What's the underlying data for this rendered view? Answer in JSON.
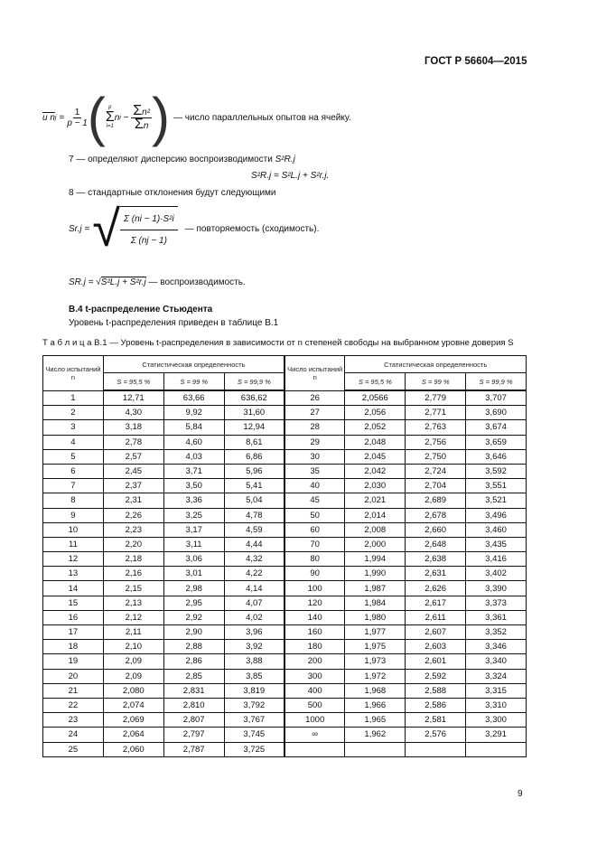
{
  "header": {
    "standard": "ГОСТ Р 56604—2015"
  },
  "formula_nj": {
    "lhs": "и  n",
    "sub": "j",
    "eq": "=",
    "one": "1",
    "den": "p − 1",
    "sum_top": "p",
    "sum_bot": "i=1",
    "ni": "n",
    "ni_sub": "i",
    "ni2": "n²",
    "desc": "— число параллельных опытов на ячейку."
  },
  "step7": {
    "text": "7 — определяют дисперсию воспроизводимости",
    "sym": "S²R.j",
    "formula": "S²R.j = S²L.j + S²r.j."
  },
  "step8": {
    "text": "8 — стандартные отклонения будут следующими",
    "sr_lhs": "Sr.j =",
    "sr_num": "Σ (ni − 1)·S²i",
    "sr_den": "Σ (nj − 1)",
    "sr_desc": "— повторяемость (сходимость).",
    "sR_lhs": "SR.j =",
    "sR_rad": "S²L.j + S²r.j",
    "sR_desc": "— воспроизводимость."
  },
  "section": {
    "title": "B.4  t-распределение Стьюдента",
    "intro": "Уровень t-распределения приведен в таблице B.1"
  },
  "table": {
    "caption": "Т а б л и ц а  B.1 — Уровень t-распределения в зависимости от n степеней свободы на выбранном уровне доверия S",
    "col_n": "Число испытаний n",
    "col_group": "Статистическая определенность",
    "sub": [
      "S = 95,5 %",
      "S = 99 %",
      "S = 99,9 %"
    ],
    "left": [
      [
        "1",
        "12,71",
        "63,66",
        "636,62"
      ],
      [
        "2",
        "4,30",
        "9,92",
        "31,60"
      ],
      [
        "3",
        "3,18",
        "5,84",
        "12,94"
      ],
      [
        "4",
        "2,78",
        "4,60",
        "8,61"
      ],
      [
        "5",
        "2,57",
        "4,03",
        "6,86"
      ],
      [
        "6",
        "2,45",
        "3,71",
        "5,96"
      ],
      [
        "7",
        "2,37",
        "3,50",
        "5,41"
      ],
      [
        "8",
        "2,31",
        "3,36",
        "5,04"
      ],
      [
        "9",
        "2,26",
        "3,25",
        "4,78"
      ],
      [
        "10",
        "2,23",
        "3,17",
        "4,59"
      ],
      [
        "11",
        "2,20",
        "3,11",
        "4,44"
      ],
      [
        "12",
        "2,18",
        "3,06",
        "4,32"
      ],
      [
        "13",
        "2,16",
        "3,01",
        "4,22"
      ],
      [
        "14",
        "2,15",
        "2,98",
        "4,14"
      ],
      [
        "15",
        "2,13",
        "2,95",
        "4,07"
      ],
      [
        "16",
        "2,12",
        "2,92",
        "4,02"
      ],
      [
        "17",
        "2,11",
        "2,90",
        "3,96"
      ],
      [
        "18",
        "2,10",
        "2,88",
        "3,92"
      ],
      [
        "19",
        "2,09",
        "2,86",
        "3,88"
      ],
      [
        "20",
        "2,09",
        "2,85",
        "3,85"
      ],
      [
        "21",
        "2,080",
        "2,831",
        "3,819"
      ],
      [
        "22",
        "2,074",
        "2,810",
        "3,792"
      ],
      [
        "23",
        "2,069",
        "2,807",
        "3,767"
      ],
      [
        "24",
        "2,064",
        "2,797",
        "3,745"
      ],
      [
        "25",
        "2,060",
        "2,787",
        "3,725"
      ]
    ],
    "right": [
      [
        "26",
        "2,0566",
        "2,779",
        "3,707"
      ],
      [
        "27",
        "2,056",
        "2,771",
        "3,690"
      ],
      [
        "28",
        "2,052",
        "2,763",
        "3,674"
      ],
      [
        "29",
        "2,048",
        "2,756",
        "3,659"
      ],
      [
        "30",
        "2,045",
        "2,750",
        "3,646"
      ],
      [
        "35",
        "2,042",
        "2,724",
        "3,592"
      ],
      [
        "40",
        "2,030",
        "2,704",
        "3,551"
      ],
      [
        "45",
        "2,021",
        "2,689",
        "3,521"
      ],
      [
        "50",
        "2,014",
        "2,678",
        "3,496"
      ],
      [
        "60",
        "2,008",
        "2,660",
        "3,460"
      ],
      [
        "70",
        "2,000",
        "2,648",
        "3,435"
      ],
      [
        "80",
        "1,994",
        "2,638",
        "3,416"
      ],
      [
        "90",
        "1,990",
        "2,631",
        "3,402"
      ],
      [
        "100",
        "1,987",
        "2,626",
        "3,390"
      ],
      [
        "120",
        "1,984",
        "2,617",
        "3,373"
      ],
      [
        "140",
        "1,980",
        "2,611",
        "3,361"
      ],
      [
        "160",
        "1,977",
        "2,607",
        "3,352"
      ],
      [
        "180",
        "1,975",
        "2,603",
        "3,346"
      ],
      [
        "200",
        "1,973",
        "2,601",
        "3,340"
      ],
      [
        "300",
        "1,972",
        "2,592",
        "3,324"
      ],
      [
        "400",
        "1,968",
        "2,588",
        "3,315"
      ],
      [
        "500",
        "1,966",
        "2,586",
        "3,310"
      ],
      [
        "1000",
        "1,965",
        "2,581",
        "3,300"
      ],
      [
        "∞",
        "1,962",
        "2,576",
        "3,291"
      ],
      [
        "",
        "",
        "",
        ""
      ]
    ]
  },
  "page_number": "9"
}
